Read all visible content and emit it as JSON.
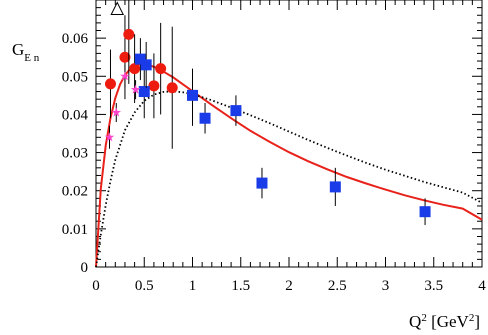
{
  "chart_data": {
    "type": "scatter",
    "title": "",
    "xlabel": "Q² [GeV²]",
    "ylabel": "G_E n",
    "xlim": [
      0,
      4
    ],
    "ylim": [
      0,
      0.07
    ],
    "xticks": [
      "0",
      "0.5",
      "1",
      "1.5",
      "2",
      "2.5",
      "3",
      "3.5",
      "4"
    ],
    "yticks": [
      "0",
      "0.01",
      "0.02",
      "0.03",
      "0.04",
      "0.05",
      "0.06"
    ],
    "grid": false,
    "legend": "none",
    "series": [
      {
        "marker": "circle",
        "color": "#ee1c0e",
        "points": [
          {
            "x": 0.15,
            "y": 0.048,
            "lo": 0.039,
            "hi": 0.057
          },
          {
            "x": 0.3,
            "y": 0.055,
            "lo": 0.044,
            "hi": 0.066
          },
          {
            "x": 0.34,
            "y": 0.061,
            "lo": 0.048,
            "hi": 0.074
          },
          {
            "x": 0.4,
            "y": 0.052,
            "lo": 0.043,
            "hi": 0.061
          },
          {
            "x": 0.6,
            "y": 0.0475,
            "lo": 0.039,
            "hi": 0.056
          },
          {
            "x": 0.67,
            "y": 0.052,
            "lo": 0.04,
            "hi": 0.064
          },
          {
            "x": 0.79,
            "y": 0.047,
            "lo": 0.031,
            "hi": 0.063
          }
        ]
      },
      {
        "marker": "square",
        "color": "#1a3ce8",
        "points": [
          {
            "x": 0.46,
            "y": 0.0545,
            "lo": 0.049,
            "hi": 0.06
          },
          {
            "x": 0.5,
            "y": 0.046,
            "lo": 0.039,
            "hi": 0.053
          },
          {
            "x": 0.52,
            "y": 0.053,
            "lo": 0.047,
            "hi": 0.059
          },
          {
            "x": 1.0,
            "y": 0.045,
            "lo": 0.037,
            "hi": 0.052
          },
          {
            "x": 1.13,
            "y": 0.039,
            "lo": 0.035,
            "hi": 0.043
          },
          {
            "x": 1.45,
            "y": 0.041,
            "lo": 0.037,
            "hi": 0.045
          },
          {
            "x": 1.72,
            "y": 0.022,
            "lo": 0.018,
            "hi": 0.026
          },
          {
            "x": 2.48,
            "y": 0.021,
            "lo": 0.016,
            "hi": 0.026
          },
          {
            "x": 3.41,
            "y": 0.0145,
            "lo": 0.011,
            "hi": 0.018
          }
        ]
      },
      {
        "marker": "star",
        "color": "#ff44cc",
        "points": [
          {
            "x": 0.14,
            "y": 0.034,
            "lo": 0.031,
            "hi": 0.037
          },
          {
            "x": 0.21,
            "y": 0.0405,
            "lo": 0.038,
            "hi": 0.043
          },
          {
            "x": 0.3,
            "y": 0.05,
            "lo": 0.047,
            "hi": 0.053
          },
          {
            "x": 0.41,
            "y": 0.0465,
            "lo": 0.044,
            "hi": 0.049
          }
        ]
      },
      {
        "marker": "triangle-open",
        "color": "#000000",
        "points": [
          {
            "x": 0.22,
            "y": 0.0675,
            "lo": 0.0675,
            "hi": 0.0675
          }
        ]
      }
    ],
    "curves": [
      {
        "style": "solid",
        "color": "#e8221a",
        "points": [
          [
            0,
            0
          ],
          [
            0.05,
            0.0205
          ],
          [
            0.1,
            0.0318
          ],
          [
            0.15,
            0.0391
          ],
          [
            0.2,
            0.0443
          ],
          [
            0.25,
            0.0479
          ],
          [
            0.3,
            0.0503
          ],
          [
            0.35,
            0.0518
          ],
          [
            0.4,
            0.0527
          ],
          [
            0.45,
            0.0531
          ],
          [
            0.5,
            0.0531
          ],
          [
            0.55,
            0.0529
          ],
          [
            0.6,
            0.0525
          ],
          [
            0.7,
            0.0512
          ],
          [
            0.8,
            0.0497
          ],
          [
            0.9,
            0.0479
          ],
          [
            1.0,
            0.0461
          ],
          [
            1.2,
            0.0425
          ],
          [
            1.4,
            0.039
          ],
          [
            1.6,
            0.0357
          ],
          [
            1.8,
            0.0328
          ],
          [
            2.0,
            0.0301
          ],
          [
            2.2,
            0.0277
          ],
          [
            2.4,
            0.0256
          ],
          [
            2.6,
            0.0236
          ],
          [
            2.8,
            0.0219
          ],
          [
            3.0,
            0.0203
          ],
          [
            3.2,
            0.0188
          ],
          [
            3.4,
            0.0175
          ],
          [
            3.6,
            0.0163
          ],
          [
            3.8,
            0.0153
          ],
          [
            4.0,
            0.0124
          ]
        ]
      },
      {
        "style": "dotted",
        "color": "#000000",
        "points": [
          [
            0,
            0
          ],
          [
            0.05,
            0.0085
          ],
          [
            0.1,
            0.0162
          ],
          [
            0.15,
            0.0226
          ],
          [
            0.2,
            0.0281
          ],
          [
            0.3,
            0.0359
          ],
          [
            0.4,
            0.0405
          ],
          [
            0.5,
            0.0436
          ],
          [
            0.6,
            0.0452
          ],
          [
            0.7,
            0.0459
          ],
          [
            0.8,
            0.0461
          ],
          [
            0.9,
            0.0458
          ],
          [
            1.0,
            0.0453
          ],
          [
            1.2,
            0.0437
          ],
          [
            1.4,
            0.0418
          ],
          [
            1.6,
            0.0398
          ],
          [
            1.8,
            0.0377
          ],
          [
            2.0,
            0.0355
          ],
          [
            2.2,
            0.0333
          ],
          [
            2.4,
            0.0312
          ],
          [
            2.6,
            0.0292
          ],
          [
            2.8,
            0.0273
          ],
          [
            3.0,
            0.0255
          ],
          [
            3.2,
            0.0239
          ],
          [
            3.4,
            0.0223
          ],
          [
            3.6,
            0.0209
          ],
          [
            3.8,
            0.0195
          ],
          [
            4.0,
            0.0168
          ]
        ]
      }
    ]
  }
}
